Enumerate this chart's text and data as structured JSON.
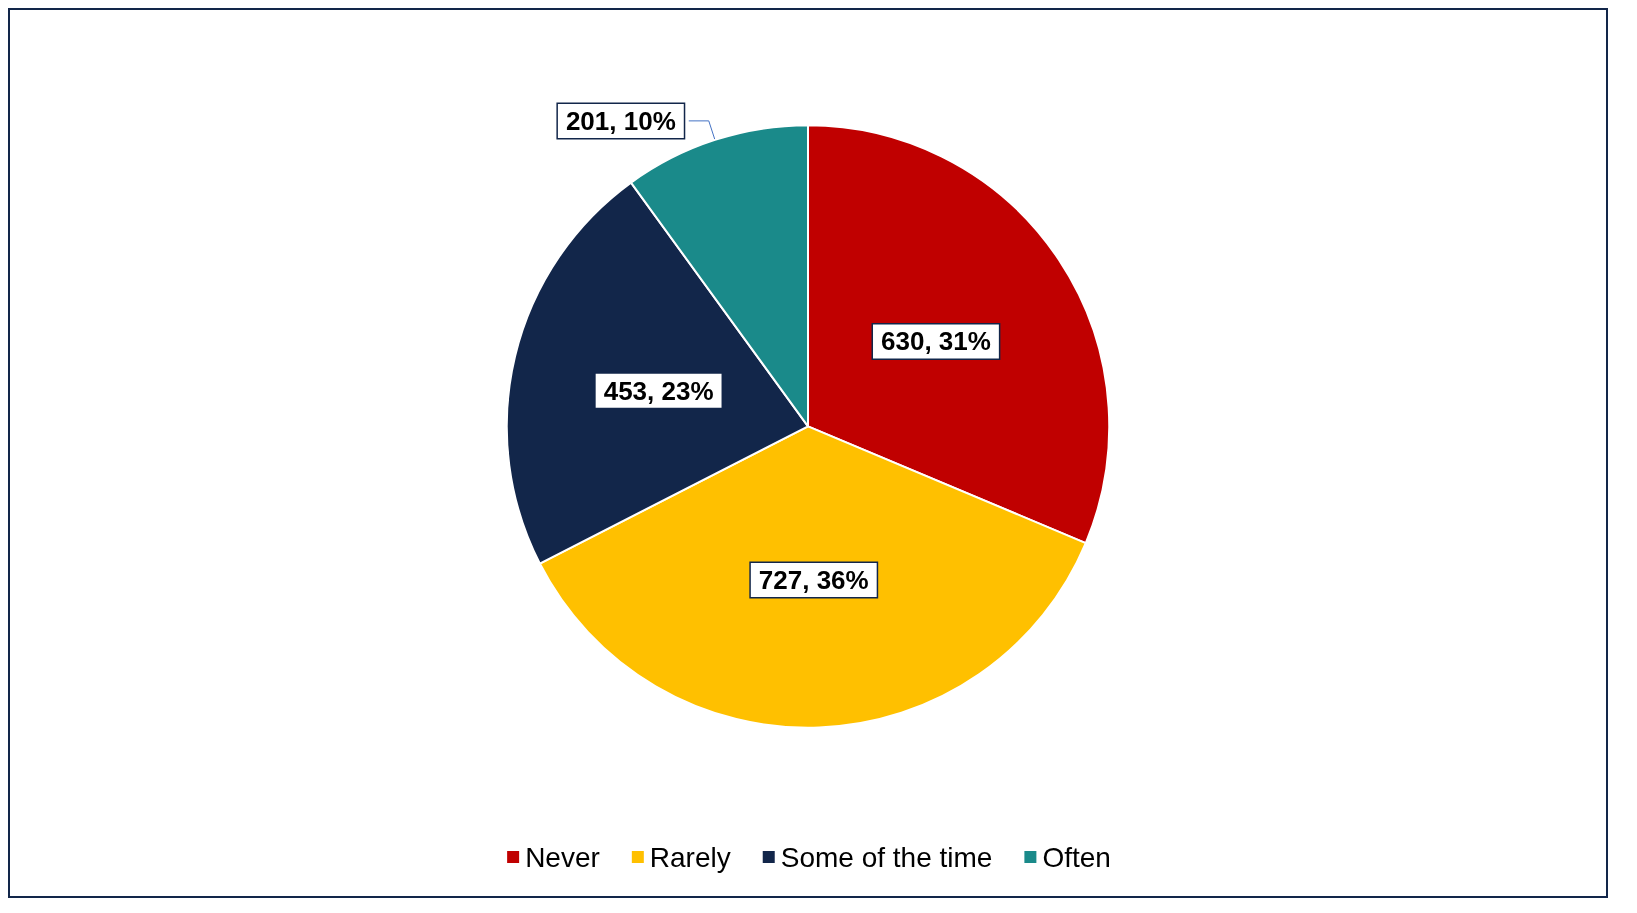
{
  "chart_data": {
    "type": "pie",
    "categories": [
      "Never",
      "Rarely",
      "Some of the time",
      "Often"
    ],
    "values": [
      630,
      727,
      453,
      201
    ],
    "colors": [
      "#c00000",
      "#ffc000",
      "#12264a",
      "#1a8a8a"
    ],
    "value_labels": [
      "630, 31%",
      "727, 36%",
      "453, 23%",
      "201, 10%"
    ],
    "legend": "bottom"
  }
}
